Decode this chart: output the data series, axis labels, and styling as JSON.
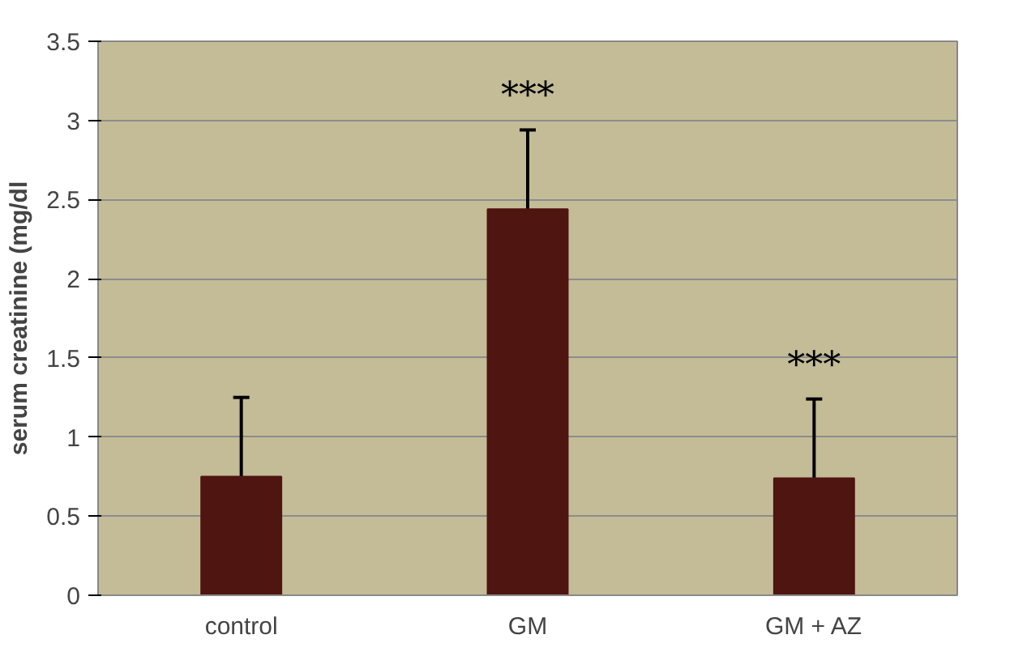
{
  "chart_data": {
    "type": "bar",
    "ylabel": "serum creatinine (mg/dl",
    "categories": [
      "control",
      "GM",
      "GM + AZ"
    ],
    "values": [
      0.75,
      2.44,
      0.74
    ],
    "color": "#4f1511",
    "errors": [
      0.5,
      0.5,
      0.5
    ],
    "ylim": [
      0,
      3.5
    ],
    "yticks": [
      0,
      0.5,
      1,
      1.5,
      2,
      2.5,
      3,
      3.5
    ],
    "grid": "y",
    "annotations": [
      "***",
      "***"
    ]
  }
}
